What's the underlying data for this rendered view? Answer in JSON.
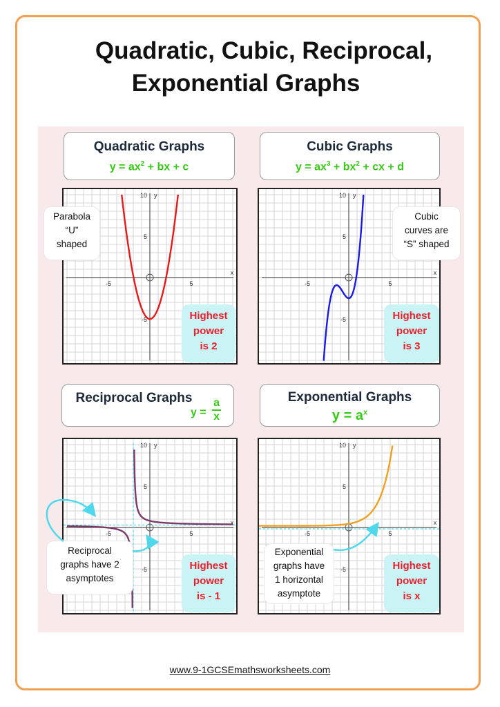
{
  "title_line1": "Quadratic, Cubic, Reciprocal,",
  "title_line2": "Exponential Graphs",
  "footer": "www.9-1GCSEmathsworksheets.com",
  "colors": {
    "quadratic": "#e21a1a",
    "cubic": "#1a1ae0",
    "reciprocal": "#7a3a6a",
    "exponential": "#f0a020",
    "arrow": "#4fd8ec"
  },
  "quadratic": {
    "title": "Quadratic Graphs",
    "formula_base": "y = ax",
    "formula_exp": "2",
    "formula_rest": " + bx + c",
    "callout": [
      "Parabola",
      "“U”",
      "shaped"
    ],
    "power": [
      "Highest",
      "power",
      "is 2"
    ]
  },
  "cubic": {
    "title": "Cubic Graphs",
    "formula_a": "y = ax",
    "formula_a_exp": "3",
    "formula_b": " + bx",
    "formula_b_exp": "2",
    "formula_rest": " + cx + d",
    "callout": [
      "Cubic",
      "curves are",
      "“S” shaped"
    ],
    "power": [
      "Highest",
      "power",
      "is 3"
    ]
  },
  "reciprocal": {
    "title": "Reciprocal Graphs",
    "formula_lhs": "y =",
    "formula_num": "a",
    "formula_den": "x",
    "callout": [
      "Reciprocal",
      "graphs have 2",
      "asymptotes"
    ],
    "power": [
      "Highest",
      "power",
      "is - 1"
    ]
  },
  "exponential": {
    "title": "Exponential Graphs",
    "formula_base": "y = a",
    "formula_exp": "x",
    "callout": [
      "Exponential",
      "graphs have",
      "1 horizontal",
      "asymptote"
    ],
    "power": [
      "Highest",
      "power",
      "is x"
    ]
  },
  "axis_labels": {
    "ten": "10",
    "five": "5",
    "neg_five": "-5",
    "x": "x",
    "y": "y"
  }
}
